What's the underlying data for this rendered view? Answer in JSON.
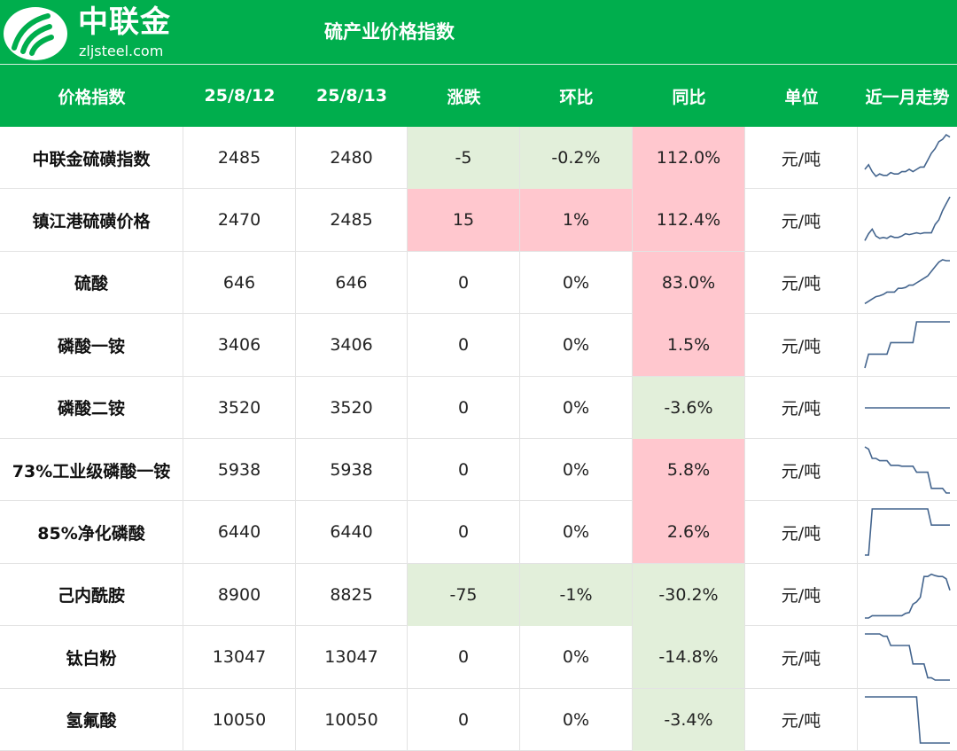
{
  "brand": {
    "name": "中联金",
    "url": "zljsteel.com"
  },
  "title": "硫产业价格指数",
  "colors": {
    "green": "#00ae4d",
    "up": "#ffc7ce",
    "down": "#e2efda",
    "line": "#44658e"
  },
  "headers": [
    "价格指数",
    "25/8/12",
    "25/8/13",
    "涨跌",
    "环比",
    "同比",
    "单位",
    "近一月走势"
  ],
  "rows": [
    {
      "name": "中联金硫磺指数",
      "d1": "2485",
      "d2": "2480",
      "chg": "-5",
      "mom": "-0.2%",
      "yoy": "112.0%",
      "unit": "元/吨",
      "chg_tone": "down",
      "yoy_tone": "up",
      "trend": [
        0.25,
        0.35,
        0.2,
        0.1,
        0.15,
        0.12,
        0.12,
        0.18,
        0.15,
        0.15,
        0.2,
        0.2,
        0.25,
        0.2,
        0.25,
        0.3,
        0.3,
        0.45,
        0.6,
        0.7,
        0.85,
        0.9,
        1.0,
        0.95
      ]
    },
    {
      "name": "镇江港硫磺价格",
      "d1": "2470",
      "d2": "2485",
      "chg": "15",
      "mom": "1%",
      "yoy": "112.4%",
      "unit": "元/吨",
      "chg_tone": "up",
      "yoy_tone": "up",
      "trend": [
        0.05,
        0.2,
        0.3,
        0.15,
        0.1,
        0.12,
        0.1,
        0.15,
        0.12,
        0.12,
        0.15,
        0.2,
        0.18,
        0.2,
        0.22,
        0.2,
        0.22,
        0.22,
        0.22,
        0.4,
        0.5,
        0.7,
        0.85,
        1.0
      ]
    },
    {
      "name": "硫酸",
      "d1": "646",
      "d2": "646",
      "chg": "0",
      "mom": "0%",
      "yoy": "83.0%",
      "unit": "元/吨",
      "chg_tone": "none",
      "yoy_tone": "up",
      "trend": [
        0.05,
        0.1,
        0.15,
        0.2,
        0.22,
        0.25,
        0.3,
        0.3,
        0.3,
        0.38,
        0.38,
        0.4,
        0.45,
        0.45,
        0.5,
        0.55,
        0.6,
        0.65,
        0.75,
        0.85,
        0.95,
        1.0,
        0.98,
        0.98
      ]
    },
    {
      "name": "磷酸一铵",
      "d1": "3406",
      "d2": "3406",
      "chg": "0",
      "mom": "0%",
      "yoy": "1.5%",
      "unit": "元/吨",
      "chg_tone": "none",
      "yoy_tone": "up",
      "trend": [
        0.0,
        0.3,
        0.3,
        0.3,
        0.3,
        0.3,
        0.3,
        0.55,
        0.55,
        0.55,
        0.55,
        0.55,
        0.55,
        0.55,
        1.0,
        1.0,
        1.0,
        1.0,
        1.0,
        1.0,
        1.0,
        1.0,
        1.0,
        1.0
      ]
    },
    {
      "name": "磷酸二铵",
      "d1": "3520",
      "d2": "3520",
      "chg": "0",
      "mom": "0%",
      "yoy": "-3.6%",
      "unit": "元/吨",
      "chg_tone": "none",
      "yoy_tone": "down",
      "trend": [
        0.5,
        0.5,
        0.5,
        0.5,
        0.5,
        0.5,
        0.5,
        0.5,
        0.5,
        0.5,
        0.5,
        0.5,
        0.5,
        0.5,
        0.5,
        0.5,
        0.5,
        0.5,
        0.5,
        0.5,
        0.5,
        0.5,
        0.5,
        0.5
      ]
    },
    {
      "name": "73%工业级磷酸一铵",
      "d1": "5938",
      "d2": "5938",
      "chg": "0",
      "mom": "0%",
      "yoy": "5.8%",
      "unit": "元/吨",
      "chg_tone": "none",
      "yoy_tone": "up",
      "trend": [
        1.0,
        0.95,
        0.75,
        0.75,
        0.7,
        0.7,
        0.7,
        0.6,
        0.6,
        0.6,
        0.58,
        0.58,
        0.58,
        0.58,
        0.45,
        0.45,
        0.45,
        0.45,
        0.1,
        0.1,
        0.1,
        0.1,
        0.0,
        0.0
      ]
    },
    {
      "name": "85%净化磷酸",
      "d1": "6440",
      "d2": "6440",
      "chg": "0",
      "mom": "0%",
      "yoy": "2.6%",
      "unit": "元/吨",
      "chg_tone": "none",
      "yoy_tone": "up",
      "trend": [
        0.0,
        0.0,
        1.0,
        1.0,
        1.0,
        1.0,
        1.0,
        1.0,
        1.0,
        1.0,
        1.0,
        1.0,
        1.0,
        1.0,
        1.0,
        1.0,
        1.0,
        1.0,
        0.65,
        0.65,
        0.65,
        0.65,
        0.65,
        0.65
      ]
    },
    {
      "name": "己内酰胺",
      "d1": "8900",
      "d2": "8825",
      "chg": "-75",
      "mom": "-1%",
      "yoy": "-30.2%",
      "unit": "元/吨",
      "chg_tone": "down",
      "yoy_tone": "down",
      "trend": [
        0.0,
        0.0,
        0.05,
        0.05,
        0.05,
        0.05,
        0.05,
        0.05,
        0.05,
        0.05,
        0.05,
        0.1,
        0.12,
        0.3,
        0.35,
        0.45,
        0.9,
        0.9,
        0.95,
        0.92,
        0.9,
        0.9,
        0.85,
        0.6
      ]
    },
    {
      "name": "钛白粉",
      "d1": "13047",
      "d2": "13047",
      "chg": "0",
      "mom": "0%",
      "yoy": "-14.8%",
      "unit": "元/吨",
      "chg_tone": "none",
      "yoy_tone": "down",
      "trend": [
        1.0,
        1.0,
        1.0,
        1.0,
        1.0,
        0.95,
        0.95,
        0.75,
        0.75,
        0.75,
        0.75,
        0.75,
        0.75,
        0.35,
        0.35,
        0.35,
        0.35,
        0.05,
        0.05,
        0.0,
        0.0,
        0.0,
        0.0,
        0.0
      ]
    },
    {
      "name": "氢氟酸",
      "d1": "10050",
      "d2": "10050",
      "chg": "0",
      "mom": "0%",
      "yoy": "-3.4%",
      "unit": "元/吨",
      "chg_tone": "none",
      "yoy_tone": "down",
      "trend": [
        1.0,
        1.0,
        1.0,
        1.0,
        1.0,
        1.0,
        1.0,
        1.0,
        1.0,
        1.0,
        1.0,
        1.0,
        1.0,
        1.0,
        1.0,
        0.0,
        0.0,
        0.0,
        0.0,
        0.0,
        0.0,
        0.0,
        0.0,
        0.0
      ]
    }
  ]
}
